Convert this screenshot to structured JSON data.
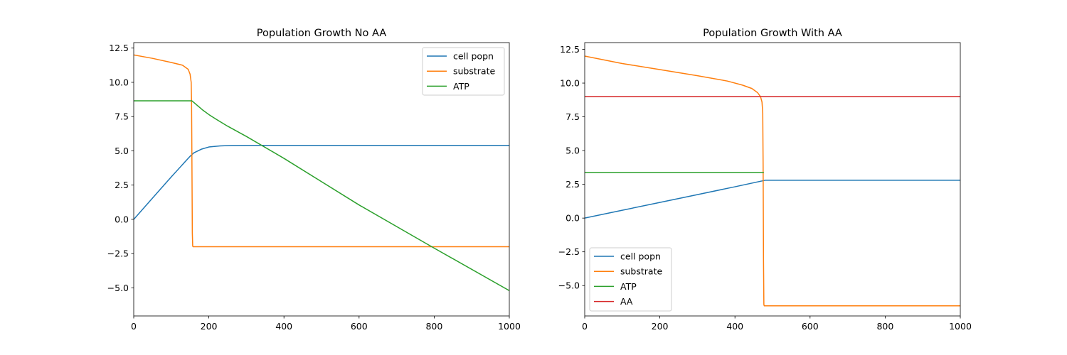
{
  "chart_data": [
    {
      "type": "line",
      "title": "Population Growth No AA",
      "xlabel": "",
      "ylabel": "",
      "xlim": [
        0,
        1000
      ],
      "ylim": [
        -7.05,
        12.9
      ],
      "xticks": [
        0,
        200,
        400,
        600,
        800,
        1000
      ],
      "xtick_labels": [
        "0",
        "200",
        "400",
        "600",
        "800",
        "1000"
      ],
      "yticks": [
        -5.0,
        -2.5,
        0.0,
        2.5,
        5.0,
        7.5,
        10.0,
        12.5
      ],
      "ytick_labels": [
        "−5.0",
        "−2.5",
        "0.0",
        "2.5",
        "5.0",
        "7.5",
        "10.0",
        "12.5"
      ],
      "grid": false,
      "legend_position": "upper-right",
      "series": [
        {
          "name": "cell popn",
          "color": "#1f77b4",
          "x": [
            0,
            50,
            100,
            150,
            160,
            180,
            200,
            230,
            260,
            300,
            400,
            600,
            800,
            1000
          ],
          "y": [
            0.0,
            1.55,
            3.1,
            4.6,
            4.85,
            5.12,
            5.28,
            5.36,
            5.39,
            5.4,
            5.4,
            5.4,
            5.4,
            5.4
          ]
        },
        {
          "name": "substrate",
          "color": "#ff7f0e",
          "x": [
            0,
            50,
            100,
            130,
            145,
            150,
            153,
            154,
            155,
            156,
            157,
            158,
            160,
            300,
            600,
            1000
          ],
          "y": [
            12.0,
            11.75,
            11.45,
            11.25,
            10.95,
            10.6,
            10.0,
            8.5,
            4.0,
            -1.0,
            -1.95,
            -2.0,
            -2.0,
            -2.0,
            -2.0,
            -2.0
          ]
        },
        {
          "name": "ATP",
          "color": "#2ca02c",
          "x": [
            0,
            100,
            155,
            170,
            185,
            200,
            220,
            250,
            300,
            400,
            600,
            800,
            1000
          ],
          "y": [
            8.65,
            8.65,
            8.65,
            8.3,
            7.95,
            7.65,
            7.3,
            6.8,
            6.05,
            4.45,
            1.05,
            -2.1,
            -5.2
          ]
        }
      ]
    },
    {
      "type": "line",
      "title": "Population Growth With AA",
      "xlabel": "",
      "ylabel": "",
      "xlim": [
        0,
        1000
      ],
      "ylim": [
        -7.25,
        13.0
      ],
      "xticks": [
        0,
        200,
        400,
        600,
        800,
        1000
      ],
      "xtick_labels": [
        "0",
        "200",
        "400",
        "600",
        "800",
        "1000"
      ],
      "yticks": [
        -5.0,
        -2.5,
        0.0,
        2.5,
        5.0,
        7.5,
        10.0,
        12.5
      ],
      "ytick_labels": [
        "−5.0",
        "−2.5",
        "0.0",
        "2.5",
        "5.0",
        "7.5",
        "10.0",
        "12.5"
      ],
      "grid": false,
      "legend_position": "lower-left",
      "series": [
        {
          "name": "cell popn",
          "color": "#1f77b4",
          "x": [
            0,
            100,
            200,
            300,
            400,
            477,
            480,
            600,
            800,
            1000
          ],
          "y": [
            0.0,
            0.58,
            1.16,
            1.74,
            2.32,
            2.78,
            2.8,
            2.8,
            2.8,
            2.8
          ]
        },
        {
          "name": "substrate",
          "color": "#ff7f0e",
          "x": [
            0,
            100,
            200,
            300,
            380,
            420,
            445,
            460,
            468,
            472,
            474,
            475,
            476,
            477,
            478,
            480,
            600,
            800,
            1000
          ],
          "y": [
            12.0,
            11.45,
            11.0,
            10.55,
            10.15,
            9.85,
            9.6,
            9.3,
            9.0,
            8.6,
            7.8,
            4.0,
            -3.0,
            -6.4,
            -6.5,
            -6.5,
            -6.5,
            -6.5,
            -6.5
          ]
        },
        {
          "name": "ATP",
          "color": "#2ca02c",
          "x": [
            0,
            200,
            400,
            477
          ],
          "y": [
            3.38,
            3.38,
            3.38,
            3.38
          ]
        },
        {
          "name": "AA",
          "color": "#d62728",
          "x": [
            0,
            500,
            1000
          ],
          "y": [
            9.0,
            9.0,
            9.0
          ]
        }
      ]
    }
  ]
}
